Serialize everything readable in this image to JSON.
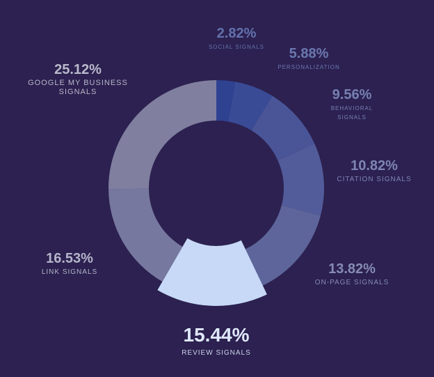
{
  "chart_data": {
    "type": "donut",
    "categories": [
      "SOCIAL SIGNALS",
      "PERSONALIZATION",
      "BEHAVIORAL SIGNALS",
      "CITATION SIGNALS",
      "ON-PAGE SIGNALS",
      "REVIEW SIGNALS",
      "LINK SIGNALS",
      "GOOGLE MY BUSINESS SIGNALS"
    ],
    "values": [
      2.82,
      5.88,
      9.56,
      10.82,
      13.82,
      15.44,
      16.53,
      25.12
    ],
    "value_labels": [
      "2.82%",
      "5.88%",
      "9.56%",
      "10.82%",
      "13.82%",
      "15.44%",
      "16.53%",
      "25.12%"
    ],
    "colors": [
      "#2f4191",
      "#3a4b96",
      "#4a5598",
      "#535c9a",
      "#5e659b",
      "#c7d9f6",
      "#77789f",
      "#807fa0"
    ],
    "explode_index": 5
  }
}
